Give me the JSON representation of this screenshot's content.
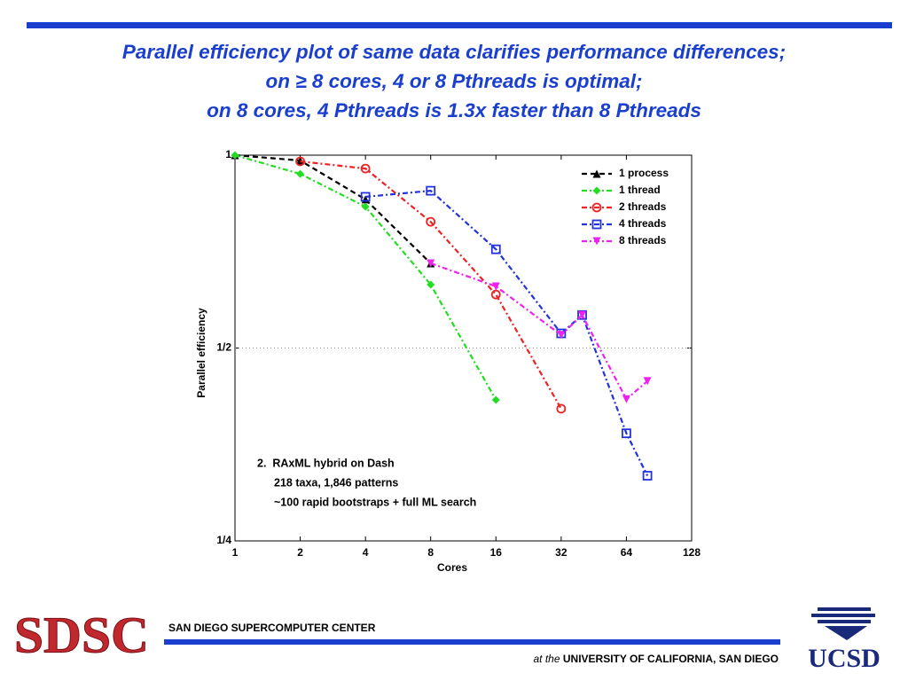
{
  "slide": {
    "title_lines": [
      "Parallel efficiency plot of same data clarifies performance differences;",
      "on ≥ 8 cores, 4 or 8 Pthreads is optimal;",
      "on 8 cores, 4 Pthreads is 1.3x faster than 8 Pthreads"
    ],
    "center_name": "SAN DIEGO SUPERCOMPUTER CENTER",
    "at_the": "at the",
    "university": "UNIVERSITY OF CALIFORNIA, SAN DIEGO",
    "logo_left": "SDSC",
    "logo_right": "UCSD"
  },
  "chart_data": {
    "type": "line",
    "xlabel": "Cores",
    "ylabel": "Parallel efficiency",
    "xscale": "log",
    "yscale": "log",
    "xlim": [
      1,
      128
    ],
    "ylim": [
      0.25,
      1
    ],
    "xticks": [
      1,
      2,
      4,
      8,
      16,
      32,
      64,
      128
    ],
    "yticks": [
      {
        "value": 0.25,
        "label": "1/4"
      },
      {
        "value": 0.5,
        "label": "1/2"
      },
      {
        "value": 1,
        "label": "1"
      }
    ],
    "hline": 0.5,
    "legend": "upper right",
    "annotation": [
      "2.  RAxML hybrid on Dash",
      "218 taxa, 1,846 patterns",
      "~100 rapid bootstraps + full ML search"
    ],
    "series": [
      {
        "name": "1 process",
        "color": "#000000",
        "marker": "triangle",
        "dash": "6,4",
        "x": [
          1,
          2,
          4,
          8
        ],
        "values": [
          1,
          0.981,
          0.853,
          0.678
        ]
      },
      {
        "name": "1 thread",
        "color": "#22dd22",
        "marker": "diamond",
        "dash": "6,3,2,3",
        "x": [
          1,
          2,
          4,
          8,
          16
        ],
        "values": [
          1,
          0.935,
          0.831,
          0.628,
          0.415
        ]
      },
      {
        "name": "2 threads",
        "color": "#ee2222",
        "marker": "circle",
        "dash": "6,3,2,3",
        "x": [
          2,
          4,
          8,
          16,
          32
        ],
        "values": [
          0.978,
          0.953,
          0.787,
          0.606,
          0.402
        ]
      },
      {
        "name": "4 threads",
        "color": "#2233dd",
        "marker": "square",
        "dash": "6,3,2,3",
        "x": [
          4,
          8,
          16,
          32,
          40,
          64,
          80
        ],
        "values": [
          0.861,
          0.88,
          0.713,
          0.527,
          0.563,
          0.368,
          0.316
        ]
      },
      {
        "name": "8 threads",
        "color": "#ee22ee",
        "marker": "downtriangle",
        "dash": "6,3,2,3",
        "x": [
          8,
          16,
          32,
          40,
          64,
          80
        ],
        "values": [
          0.678,
          0.624,
          0.524,
          0.563,
          0.416,
          0.444
        ]
      }
    ]
  }
}
